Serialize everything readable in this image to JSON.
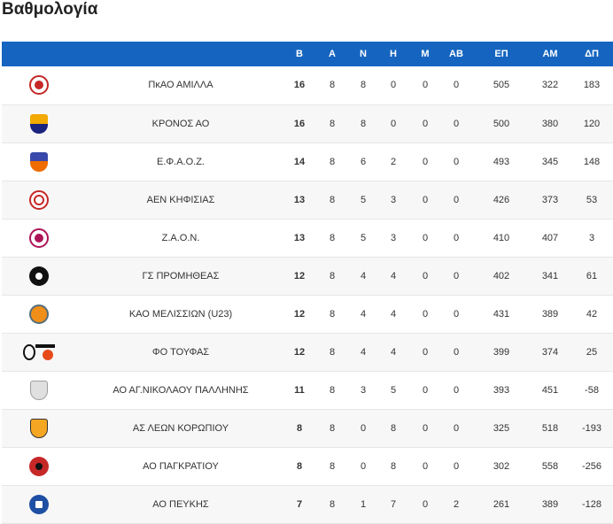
{
  "page": {
    "title": "Βαθμολογία"
  },
  "table": {
    "headers": {
      "team": "",
      "points": "Β",
      "played": "Α",
      "wins": "Ν",
      "losses": "Η",
      "m": "Μ",
      "ab": "ΑΒ",
      "pf": "ΕΠ",
      "pa": "ΑΜ",
      "diff": "ΔΠ"
    },
    "rows": [
      {
        "team": "ΠκΑΟ ΑΜΙΛΛΑ",
        "logo": "amilla-logo-icon",
        "points": "16",
        "played": "8",
        "wins": "8",
        "losses": "0",
        "m": "0",
        "ab": "0",
        "pf": "505",
        "pa": "322",
        "diff": "183"
      },
      {
        "team": "ΚΡΟΝΟΣ ΑΟ",
        "logo": "kronos-logo-icon",
        "points": "16",
        "played": "8",
        "wins": "8",
        "losses": "0",
        "m": "0",
        "ab": "0",
        "pf": "500",
        "pa": "380",
        "diff": "120"
      },
      {
        "team": "Ε.Φ.Α.Ο.Ζ.",
        "logo": "efaoz-logo-icon",
        "points": "14",
        "played": "8",
        "wins": "6",
        "losses": "2",
        "m": "0",
        "ab": "0",
        "pf": "493",
        "pa": "345",
        "diff": "148"
      },
      {
        "team": "ΑΕΝ ΚΗΦΙΣΙΑΣ",
        "logo": "aen-kifisias-logo-icon",
        "points": "13",
        "played": "8",
        "wins": "5",
        "losses": "3",
        "m": "0",
        "ab": "0",
        "pf": "426",
        "pa": "373",
        "diff": "53"
      },
      {
        "team": "Ζ.Α.Ο.Ν.",
        "logo": "zaon-logo-icon",
        "points": "13",
        "played": "8",
        "wins": "5",
        "losses": "3",
        "m": "0",
        "ab": "0",
        "pf": "410",
        "pa": "407",
        "diff": "3"
      },
      {
        "team": "ΓΣ ΠΡΟΜΗΘΕΑΣ",
        "logo": "promitheas-logo-icon",
        "points": "12",
        "played": "8",
        "wins": "4",
        "losses": "4",
        "m": "0",
        "ab": "0",
        "pf": "402",
        "pa": "341",
        "diff": "61"
      },
      {
        "team": "ΚΑΟ ΜΕΛΙΣΣΙΩΝ (U23)",
        "logo": "melission-logo-icon",
        "points": "12",
        "played": "8",
        "wins": "4",
        "losses": "4",
        "m": "0",
        "ab": "0",
        "pf": "431",
        "pa": "389",
        "diff": "42"
      },
      {
        "team": "ΦΟ ΤΟΥΦΑΣ",
        "logo": "toufas-logo-icon",
        "points": "12",
        "played": "8",
        "wins": "4",
        "losses": "4",
        "m": "0",
        "ab": "0",
        "pf": "399",
        "pa": "374",
        "diff": "25"
      },
      {
        "team": "ΑΟ ΑΓ.ΝΙΚΟΛΑΟΥ ΠΑΛΛΗΝΗΣ",
        "logo": "agios-nikolaos-logo-icon",
        "points": "11",
        "played": "8",
        "wins": "3",
        "losses": "5",
        "m": "0",
        "ab": "0",
        "pf": "393",
        "pa": "451",
        "diff": "-58"
      },
      {
        "team": "ΑΣ ΛΕΩΝ ΚΟΡΩΠΙΟΥ",
        "logo": "leon-koropiou-logo-icon",
        "points": "8",
        "played": "8",
        "wins": "0",
        "losses": "8",
        "m": "0",
        "ab": "0",
        "pf": "325",
        "pa": "518",
        "diff": "-193"
      },
      {
        "team": "ΑΟ ΠΑΓΚΡΑΤΙΟΥ",
        "logo": "pagkratiou-logo-icon",
        "points": "8",
        "played": "8",
        "wins": "0",
        "losses": "8",
        "m": "0",
        "ab": "0",
        "pf": "302",
        "pa": "558",
        "diff": "-256"
      },
      {
        "team": "ΑΟ ΠΕΥΚΗΣ",
        "logo": "peukis-logo-icon",
        "points": "7",
        "played": "8",
        "wins": "1",
        "losses": "7",
        "m": "0",
        "ab": "2",
        "pf": "261",
        "pa": "389",
        "diff": "-128"
      }
    ]
  },
  "colors": {
    "header_bg": "#1565c0",
    "header_text": "#ffffff",
    "row_alt": "#f7f7f7"
  }
}
